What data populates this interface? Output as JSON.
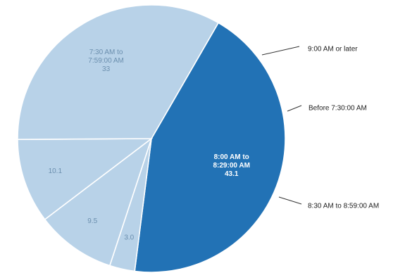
{
  "chart_data": {
    "type": "pie",
    "title": "",
    "slices": [
      {
        "label": "8:00 AM to 8:29:00 AM",
        "label_lines": [
          "8:00 AM to",
          "8:29:00 AM"
        ],
        "value": 43.1,
        "value_text": "43.1",
        "color": "#2272b5",
        "label_position": "inside"
      },
      {
        "label": "9:00 AM or later",
        "label_lines": [
          "9:00 AM or later"
        ],
        "value": 3.0,
        "value_text": "3.0",
        "color": "#b8d2e8",
        "label_position": "outside"
      },
      {
        "label": "Before 7:30:00 AM",
        "label_lines": [
          "Before 7:30:00 AM"
        ],
        "value": 9.5,
        "value_text": "9.5",
        "color": "#b8d2e8",
        "label_position": "outside"
      },
      {
        "label": "8:30 AM to 8:59:00 AM",
        "label_lines": [
          "8:30 AM to 8:59:00 AM"
        ],
        "value": 10.1,
        "value_text": "10.1",
        "color": "#b8d2e8",
        "label_position": "outside"
      },
      {
        "label": "7:30 AM to 7:59:00 AM",
        "label_lines": [
          "7:30 AM to",
          "7:59:00 AM"
        ],
        "value": 33,
        "value_text": "33",
        "color": "#b8d2e8",
        "label_position": "inside"
      }
    ]
  }
}
